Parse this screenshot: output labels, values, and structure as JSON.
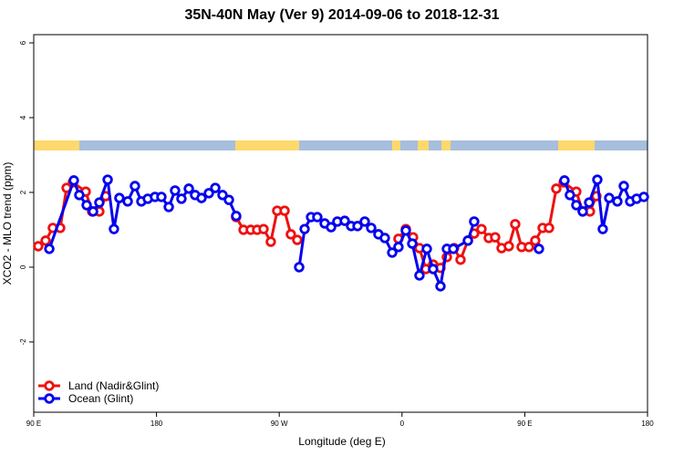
{
  "chart_data": {
    "type": "line",
    "title": "35N-40N May (Ver 9)   2014-09-06 to 2018-12-31",
    "xlabel": "Longitude (deg E)",
    "ylabel": "XCO2 - MLO trend (ppm)",
    "xlim": [
      90,
      540
    ],
    "xticks": [
      {
        "value": 90,
        "label": "90 E"
      },
      {
        "value": 180,
        "label": "180"
      },
      {
        "value": 270,
        "label": "90 W"
      },
      {
        "value": 360,
        "label": "0"
      },
      {
        "value": 450,
        "label": "90 E"
      },
      {
        "value": 540,
        "label": "180"
      }
    ],
    "ylim": [
      -3.88,
      6.22
    ],
    "yticks": [
      -2,
      0,
      2,
      4,
      6
    ],
    "legend": "bottom-left",
    "series": [
      {
        "name": "Land (Nadir&Glint)",
        "color": "#ee1111",
        "x": [
          93.3,
          98.7,
          104.0,
          109.4,
          114.1,
          118.7,
          128.1,
          132.8,
          138.1,
          142.8,
          190,
          238.4,
          243.8,
          249.1,
          253.8,
          258.5,
          263.8,
          268.5,
          273.9,
          278.5,
          283.2,
          320,
          357.4,
          362.8,
          368.1,
          372.8,
          377.5,
          382.8,
          388.2,
          392.9,
          398.2,
          402.9,
          408.3,
          412.9,
          418.3,
          423.6,
          428.3,
          433.0,
          438.3,
          443.0,
          447.7,
          453.1,
          457.7,
          463.1,
          467.8,
          473.1,
          478.5,
          487.8,
          492.5,
          497.8,
          502.5
        ],
        "values": [
          0.56,
          0.71,
          1.05,
          1.05,
          2.12,
          2.27,
          2.02,
          1.49,
          1.49,
          1.9,
          null,
          1.34,
          1.0,
          1.0,
          1.0,
          1.02,
          0.68,
          1.51,
          1.51,
          0.88,
          0.73,
          null,
          0.76,
          1.02,
          0.8,
          0.51,
          -0.05,
          0.07,
          -0.02,
          0.27,
          0.51,
          0.2,
          0.71,
          0.9,
          1.02,
          0.78,
          0.8,
          0.51,
          0.56,
          1.15,
          0.54,
          0.54,
          0.71,
          1.05,
          1.05,
          2.1,
          2.27,
          2.02,
          1.49,
          1.49,
          1.9
        ]
      },
      {
        "name": "Ocean (Glint)",
        "color": "#0000ee",
        "x": [
          101.4,
          119.4,
          123.4,
          128.8,
          133.5,
          138.1,
          144.2,
          148.8,
          152.8,
          158.9,
          164.2,
          168.9,
          173.6,
          178.9,
          183.6,
          189.0,
          193.6,
          198.3,
          203.7,
          208.3,
          213.0,
          218.4,
          223.1,
          228.4,
          233.1,
          238.4,
          260,
          284.6,
          288.6,
          293.3,
          297.9,
          303.3,
          308.0,
          312.6,
          318.0,
          322.7,
          327.4,
          332.7,
          337.4,
          342.7,
          347.4,
          352.8,
          357.4,
          362.8,
          367.5,
          372.8,
          378.2,
          382.8,
          388.2,
          392.9,
          397.6,
          408.3,
          412.9,
          440,
          460.4,
          470,
          479.1,
          483.1,
          487.8,
          492.5,
          497.2,
          503.2,
          507.2,
          511.9,
          517.9,
          522.6,
          527.3,
          532.0,
          537.3
        ],
        "values": [
          0.49,
          2.32,
          1.93,
          1.66,
          1.49,
          1.73,
          2.34,
          1.02,
          1.85,
          1.76,
          2.17,
          1.76,
          1.83,
          1.88,
          1.88,
          1.61,
          2.05,
          1.83,
          2.1,
          1.93,
          1.85,
          1.98,
          2.12,
          1.93,
          1.8,
          1.37,
          null,
          0.0,
          1.02,
          1.34,
          1.34,
          1.17,
          1.07,
          1.22,
          1.24,
          1.1,
          1.1,
          1.22,
          1.05,
          0.88,
          0.78,
          0.39,
          0.54,
          0.98,
          0.63,
          -0.22,
          0.49,
          -0.05,
          -0.51,
          0.49,
          0.49,
          0.71,
          1.22,
          null,
          0.49,
          null,
          2.32,
          1.93,
          1.66,
          1.49,
          1.73,
          2.34,
          1.02,
          1.85,
          1.76,
          2.17,
          1.76,
          1.83,
          1.88
        ]
      }
    ]
  }
}
